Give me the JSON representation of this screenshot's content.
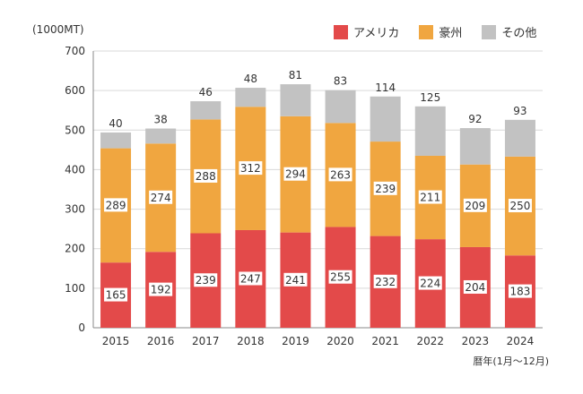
{
  "chart_data": {
    "type": "bar",
    "stacked": true,
    "unit_label": "(1000MT)",
    "xnote": "暦年(1月〜12月)",
    "categories": [
      "2015",
      "2016",
      "2017",
      "2018",
      "2019",
      "2020",
      "2021",
      "2022",
      "2023",
      "2024"
    ],
    "series": [
      {
        "name": "アメリカ",
        "color": "#e34a4a",
        "values": [
          165,
          192,
          239,
          247,
          241,
          255,
          232,
          224,
          204,
          183
        ]
      },
      {
        "name": "豪州",
        "color": "#f0a640",
        "values": [
          289,
          274,
          288,
          312,
          294,
          263,
          239,
          211,
          209,
          250
        ]
      },
      {
        "name": "その他",
        "color": "#c2c2c2",
        "values": [
          40,
          38,
          46,
          48,
          81,
          83,
          114,
          125,
          92,
          93
        ]
      }
    ],
    "ylim": [
      0,
      700
    ],
    "yticks": [
      0,
      100,
      200,
      300,
      400,
      500,
      600,
      700
    ],
    "grid": true,
    "legend_position": "top-right"
  }
}
